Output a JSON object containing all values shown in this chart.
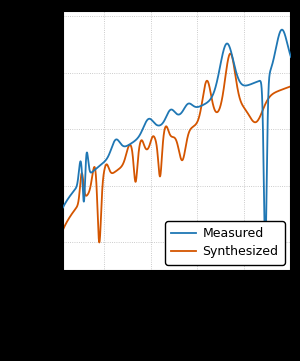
{
  "measured_color": "#1f77b4",
  "synthesized_color": "#d45500",
  "line_width": 1.3,
  "background_color": "#ffffff",
  "plot_bg": "#ffffff",
  "grid_color": "#aaaaaa",
  "legend_labels": [
    "Measured",
    "Synthesized"
  ],
  "figsize": [
    3.0,
    3.61
  ],
  "dpi": 100,
  "outer_bg": "#000000"
}
